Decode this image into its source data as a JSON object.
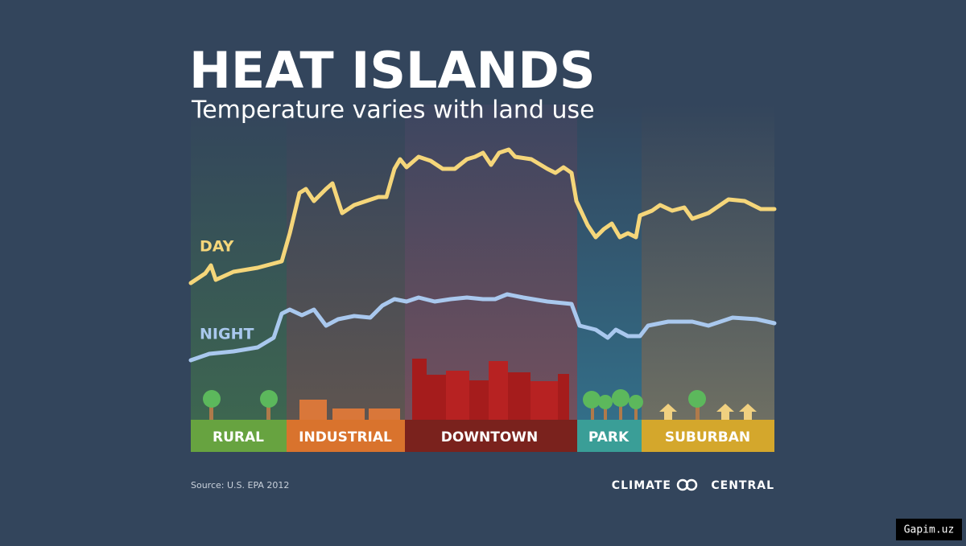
{
  "header": {
    "title": "HEAT ISLANDS",
    "subtitle": "Temperature varies with land use"
  },
  "lines": {
    "day": "DAY",
    "night": "NIGHT"
  },
  "zones": [
    "RURAL",
    "INDUSTRIAL",
    "DOWNTOWN",
    "PARK",
    "SUBURBAN"
  ],
  "footer": {
    "source": "Source: U.S. EPA 2012",
    "logo_left": "CLIMATE",
    "logo_right": "CENTRAL"
  },
  "watermark": "Gapim.uz"
}
